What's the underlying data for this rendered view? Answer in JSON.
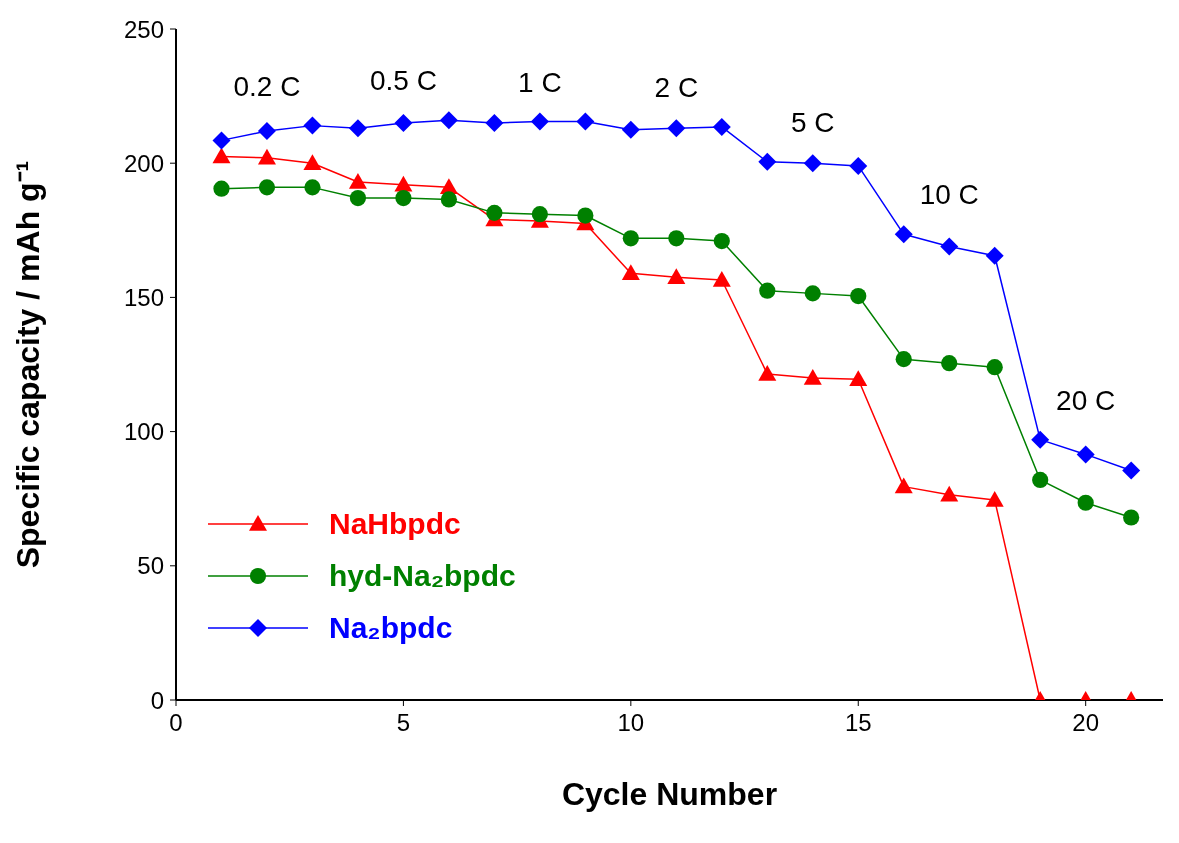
{
  "chart_data": {
    "type": "line",
    "xlabel": "Cycle Number",
    "ylabel": "Specific capacity / mAh g⁻¹",
    "x": [
      1,
      2,
      3,
      4,
      5,
      6,
      7,
      8,
      9,
      10,
      11,
      12,
      13,
      14,
      15,
      16,
      17,
      18,
      19,
      20,
      21
    ],
    "xlim": [
      0,
      21.7
    ],
    "xticks": [
      0,
      5,
      10,
      15,
      20
    ],
    "ylim": [
      0,
      250
    ],
    "yticks": [
      0,
      50,
      100,
      150,
      200,
      250
    ],
    "grid": false,
    "legend": "bottom left",
    "series": [
      {
        "name": "NaHbpdc",
        "color": "#ff0000",
        "marker": "triangle",
        "values": [
          202.5,
          202,
          200,
          193,
          192,
          191,
          179,
          178.5,
          177.5,
          159,
          157.5,
          156.5,
          121.5,
          120,
          119.5,
          79.5,
          76.5,
          74.5,
          0,
          0,
          0
        ]
      },
      {
        "name": "hyd-Na₂bpdc",
        "color": "#008000",
        "marker": "circle",
        "values": [
          190.5,
          191,
          191,
          187,
          187,
          186.5,
          181.5,
          181,
          180.5,
          172,
          172,
          171,
          152.5,
          151.5,
          150.5,
          127,
          125.5,
          124,
          82,
          73.5,
          68
        ]
      },
      {
        "name": "Na₂bpdc",
        "color": "#0000ff",
        "marker": "diamond",
        "values": [
          208.5,
          212,
          214,
          213,
          215,
          216,
          215,
          215.5,
          215.5,
          212.5,
          213,
          213.5,
          200.5,
          200,
          199,
          173.5,
          169,
          165.5,
          97,
          91.5,
          85.5
        ]
      }
    ],
    "annotations": [
      "0.2 C",
      "0.5 C",
      "1 C",
      "2 C",
      "5 C",
      "10 C",
      "20 C"
    ]
  }
}
